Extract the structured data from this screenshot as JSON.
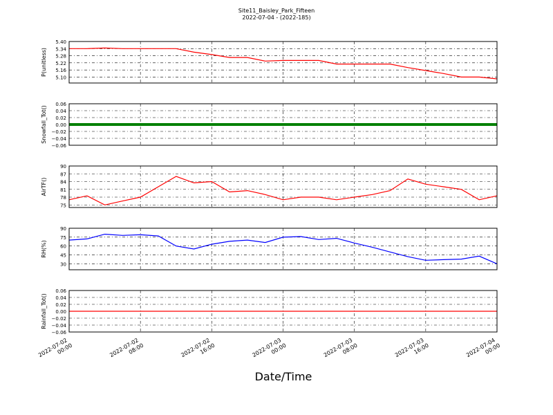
{
  "title": "Site11_Baisley_Park_Fifteen",
  "subtitle": "2022-07-04 - (2022-185)",
  "x_label": "Date/Time",
  "chart_data": [
    {
      "type": "line",
      "y_label": "P(unitless)",
      "color": "#ff0000",
      "grid": true,
      "x": [
        "2022-07-02 00:00",
        "2022-07-02 02:00",
        "2022-07-02 04:00",
        "2022-07-02 06:00",
        "2022-07-02 08:00",
        "2022-07-02 10:00",
        "2022-07-02 12:00",
        "2022-07-02 14:00",
        "2022-07-02 16:00",
        "2022-07-02 18:00",
        "2022-07-02 20:00",
        "2022-07-02 22:00",
        "2022-07-03 00:00",
        "2022-07-03 02:00",
        "2022-07-03 04:00",
        "2022-07-03 06:00",
        "2022-07-03 08:00",
        "2022-07-03 10:00",
        "2022-07-03 12:00",
        "2022-07-03 14:00",
        "2022-07-03 16:00",
        "2022-07-03 18:00",
        "2022-07-03 20:00",
        "2022-07-03 22:00",
        "2022-07-04 00:00"
      ],
      "values": [
        5.34,
        5.34,
        5.345,
        5.34,
        5.34,
        5.34,
        5.34,
        5.31,
        5.29,
        5.265,
        5.265,
        5.235,
        5.24,
        5.24,
        5.24,
        5.21,
        5.21,
        5.21,
        5.21,
        5.18,
        5.155,
        5.13,
        5.1,
        5.1,
        5.085
      ],
      "xlim": [
        "2022-07-02 00:00",
        "2022-07-04 00:00"
      ],
      "xticks": [
        "2022-07-02 00:00",
        "2022-07-02 08:00",
        "2022-07-02 16:00",
        "2022-07-03 00:00",
        "2022-07-03 08:00",
        "2022-07-03 16:00",
        "2022-07-04 00:00"
      ],
      "ylim": [
        5.05,
        5.4
      ],
      "yticks": [
        {
          "value": 5.1,
          "label": "5.10"
        },
        5.16,
        5.22,
        5.28,
        5.34,
        {
          "value": 5.4,
          "label": "5.40"
        }
      ]
    },
    {
      "type": "line",
      "y_label": "Snowfall_Tot()",
      "color": "#008000",
      "grid": true,
      "markers": true,
      "x": [
        "2022-07-02 00:00",
        "2022-07-02 02:00",
        "2022-07-02 04:00",
        "2022-07-02 06:00",
        "2022-07-02 08:00",
        "2022-07-02 10:00",
        "2022-07-02 12:00",
        "2022-07-02 14:00",
        "2022-07-02 16:00",
        "2022-07-02 18:00",
        "2022-07-02 20:00",
        "2022-07-02 22:00",
        "2022-07-03 00:00",
        "2022-07-03 02:00",
        "2022-07-03 04:00",
        "2022-07-03 06:00",
        "2022-07-03 08:00",
        "2022-07-03 10:00",
        "2022-07-03 12:00",
        "2022-07-03 14:00",
        "2022-07-03 16:00",
        "2022-07-03 18:00",
        "2022-07-03 20:00",
        "2022-07-03 22:00",
        "2022-07-04 00:00"
      ],
      "values": [
        0,
        0,
        0,
        0,
        0,
        0,
        0,
        0,
        0,
        0,
        0,
        0,
        0,
        0,
        0,
        0,
        0,
        0,
        0,
        0,
        0,
        0,
        0,
        0,
        0
      ],
      "xlim": [
        "2022-07-02 00:00",
        "2022-07-04 00:00"
      ],
      "xticks": [
        "2022-07-02 00:00",
        "2022-07-02 08:00",
        "2022-07-02 16:00",
        "2022-07-03 00:00",
        "2022-07-03 08:00",
        "2022-07-03 16:00",
        "2022-07-04 00:00"
      ],
      "ylim": [
        -0.06,
        0.06
      ],
      "yticks": [
        {
          "value": -0.06,
          "label": "−0.06"
        },
        {
          "value": -0.04,
          "label": "−0.04"
        },
        {
          "value": -0.02,
          "label": "−0.02"
        },
        {
          "value": 0,
          "label": "0.00"
        },
        0.02,
        0.04,
        0.06
      ]
    },
    {
      "type": "line",
      "y_label": "AirTF()",
      "color": "#ff0000",
      "grid": true,
      "x": [
        "2022-07-02 00:00",
        "2022-07-02 02:00",
        "2022-07-02 04:00",
        "2022-07-02 06:00",
        "2022-07-02 08:00",
        "2022-07-02 10:00",
        "2022-07-02 12:00",
        "2022-07-02 14:00",
        "2022-07-02 16:00",
        "2022-07-02 18:00",
        "2022-07-02 20:00",
        "2022-07-02 22:00",
        "2022-07-03 00:00",
        "2022-07-03 02:00",
        "2022-07-03 04:00",
        "2022-07-03 06:00",
        "2022-07-03 08:00",
        "2022-07-03 10:00",
        "2022-07-03 12:00",
        "2022-07-03 14:00",
        "2022-07-03 16:00",
        "2022-07-03 18:00",
        "2022-07-03 20:00",
        "2022-07-03 22:00",
        "2022-07-04 00:00"
      ],
      "values": [
        77,
        78.5,
        75,
        76.5,
        78,
        82,
        86,
        83.5,
        84,
        80,
        80.5,
        79,
        77,
        78,
        78,
        77,
        78,
        79,
        80.5,
        85,
        83,
        82,
        81,
        77,
        78.5
      ],
      "xlim": [
        "2022-07-02 00:00",
        "2022-07-04 00:00"
      ],
      "xticks": [
        "2022-07-02 00:00",
        "2022-07-02 08:00",
        "2022-07-02 16:00",
        "2022-07-03 00:00",
        "2022-07-03 08:00",
        "2022-07-03 16:00",
        "2022-07-04 00:00"
      ],
      "ylim": [
        74,
        90
      ],
      "yticks": [
        75,
        78,
        81,
        84,
        87,
        90
      ]
    },
    {
      "type": "line",
      "y_label": "RH(%)",
      "color": "#0000ff",
      "grid": true,
      "x": [
        "2022-07-02 00:00",
        "2022-07-02 02:00",
        "2022-07-02 04:00",
        "2022-07-02 06:00",
        "2022-07-02 08:00",
        "2022-07-02 10:00",
        "2022-07-02 12:00",
        "2022-07-02 14:00",
        "2022-07-02 16:00",
        "2022-07-02 18:00",
        "2022-07-02 20:00",
        "2022-07-02 22:00",
        "2022-07-03 00:00",
        "2022-07-03 02:00",
        "2022-07-03 04:00",
        "2022-07-03 06:00",
        "2022-07-03 08:00",
        "2022-07-03 10:00",
        "2022-07-03 12:00",
        "2022-07-03 14:00",
        "2022-07-03 16:00",
        "2022-07-03 18:00",
        "2022-07-03 20:00",
        "2022-07-03 22:00",
        "2022-07-04 00:00"
      ],
      "values": [
        70,
        72,
        80,
        78,
        79,
        77,
        60,
        55,
        63,
        68,
        70,
        66,
        75,
        76,
        71,
        73,
        65,
        58,
        50,
        42,
        36,
        37,
        38,
        43,
        30
      ],
      "xlim": [
        "2022-07-02 00:00",
        "2022-07-04 00:00"
      ],
      "xticks": [
        "2022-07-02 00:00",
        "2022-07-02 08:00",
        "2022-07-02 16:00",
        "2022-07-03 00:00",
        "2022-07-03 08:00",
        "2022-07-03 16:00",
        "2022-07-04 00:00"
      ],
      "ylim": [
        20,
        90
      ],
      "yticks": [
        30,
        45,
        60,
        75,
        90
      ]
    },
    {
      "type": "line",
      "y_label": "Rainfall_Tot()",
      "color": "#ff0000",
      "grid": true,
      "show_xtick_labels": true,
      "x": [
        "2022-07-02 00:00",
        "2022-07-02 02:00",
        "2022-07-02 04:00",
        "2022-07-02 06:00",
        "2022-07-02 08:00",
        "2022-07-02 10:00",
        "2022-07-02 12:00",
        "2022-07-02 14:00",
        "2022-07-02 16:00",
        "2022-07-02 18:00",
        "2022-07-02 20:00",
        "2022-07-02 22:00",
        "2022-07-03 00:00",
        "2022-07-03 02:00",
        "2022-07-03 04:00",
        "2022-07-03 06:00",
        "2022-07-03 08:00",
        "2022-07-03 10:00",
        "2022-07-03 12:00",
        "2022-07-03 14:00",
        "2022-07-03 16:00",
        "2022-07-03 18:00",
        "2022-07-03 20:00",
        "2022-07-03 22:00",
        "2022-07-04 00:00"
      ],
      "values": [
        0,
        0,
        0,
        0,
        0,
        0,
        0,
        0,
        0,
        0,
        0,
        0,
        0,
        0,
        0,
        0,
        0,
        0,
        0,
        0,
        0,
        0,
        0,
        0,
        0
      ],
      "xlim": [
        "2022-07-02 00:00",
        "2022-07-04 00:00"
      ],
      "xticks": [
        "2022-07-02 00:00",
        "2022-07-02 08:00",
        "2022-07-02 16:00",
        "2022-07-03 00:00",
        "2022-07-03 08:00",
        "2022-07-03 16:00",
        "2022-07-04 00:00"
      ],
      "ylim": [
        -0.06,
        0.06
      ],
      "yticks": [
        {
          "value": -0.06,
          "label": "−0.06"
        },
        {
          "value": -0.04,
          "label": "−0.04"
        },
        {
          "value": -0.02,
          "label": "−0.02"
        },
        {
          "value": 0,
          "label": "0.00"
        },
        0.02,
        0.04,
        0.06
      ]
    }
  ]
}
